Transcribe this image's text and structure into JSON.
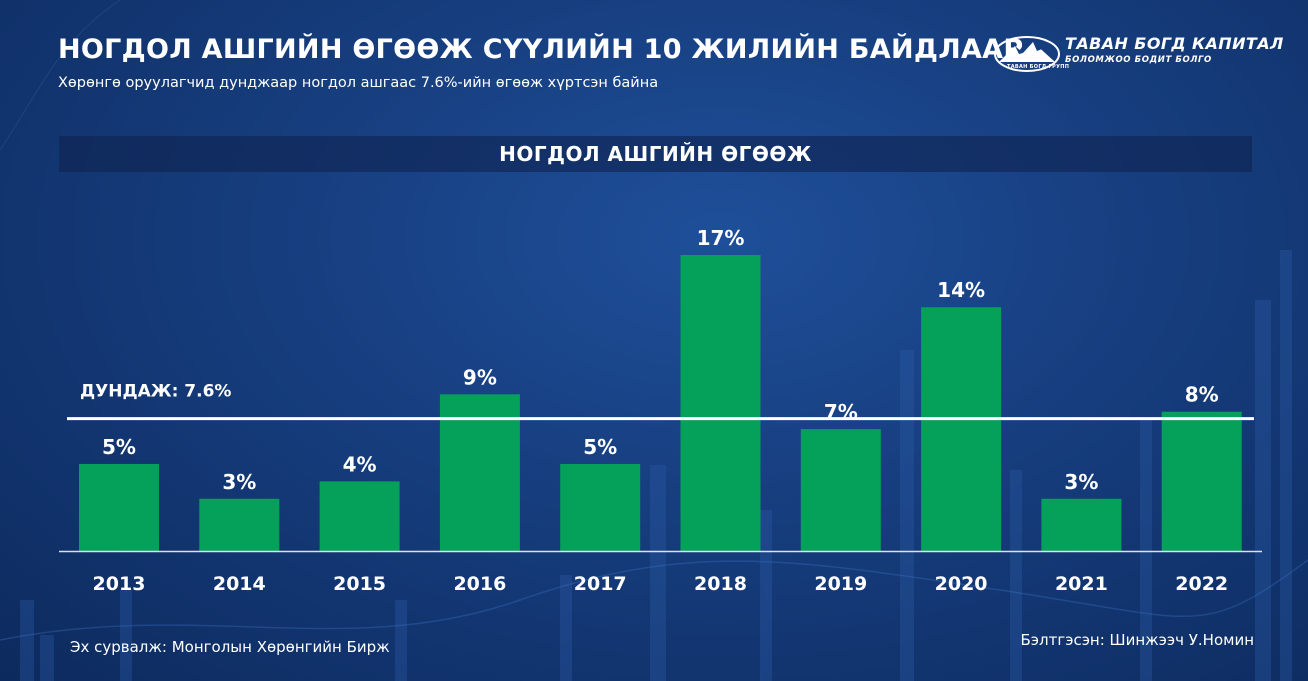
{
  "header": {
    "title": "НОГДОЛ АШГИЙН ӨГӨӨЖ СҮҮЛИЙН 10 ЖИЛИЙН БАЙДЛААР",
    "subtitle": "Хөрөнгө оруулагчид дунджаар ногдол ашгаас 7.6%-ийн өгөөж хүртсэн байна"
  },
  "logo": {
    "name": "ТАВАН БОГД КАПИТАЛ",
    "tagline": "БОЛОМЖОО БОДИТ БОЛГО",
    "group": "ТАВАН БОГД ГРУПП"
  },
  "footer": {
    "source": "Эх сурвалж: Монголын Хөрөнгийн Бирж",
    "author": "Бэлтгэсэн: Шинжээч У.Номин"
  },
  "colors": {
    "bar": "#05a05a",
    "average_line": "#ffffff",
    "background": "#163d7d"
  },
  "chart_data": {
    "type": "bar",
    "title": "НОГДОЛ АШГИЙН ӨГӨӨЖ",
    "categories": [
      "2013",
      "2014",
      "2015",
      "2016",
      "2017",
      "2018",
      "2019",
      "2020",
      "2021",
      "2022"
    ],
    "values": [
      5,
      3,
      4,
      9,
      5,
      17,
      7,
      14,
      3,
      8
    ],
    "value_labels": [
      "5%",
      "3%",
      "4%",
      "9%",
      "5%",
      "17%",
      "7%",
      "14%",
      "3%",
      "8%"
    ],
    "average": {
      "value": 7.6,
      "label": "ДУНДАЖ: 7.6%"
    },
    "ylim": [
      0,
      17
    ],
    "xlabel": "",
    "ylabel": "",
    "grid": false,
    "legend": "none"
  }
}
